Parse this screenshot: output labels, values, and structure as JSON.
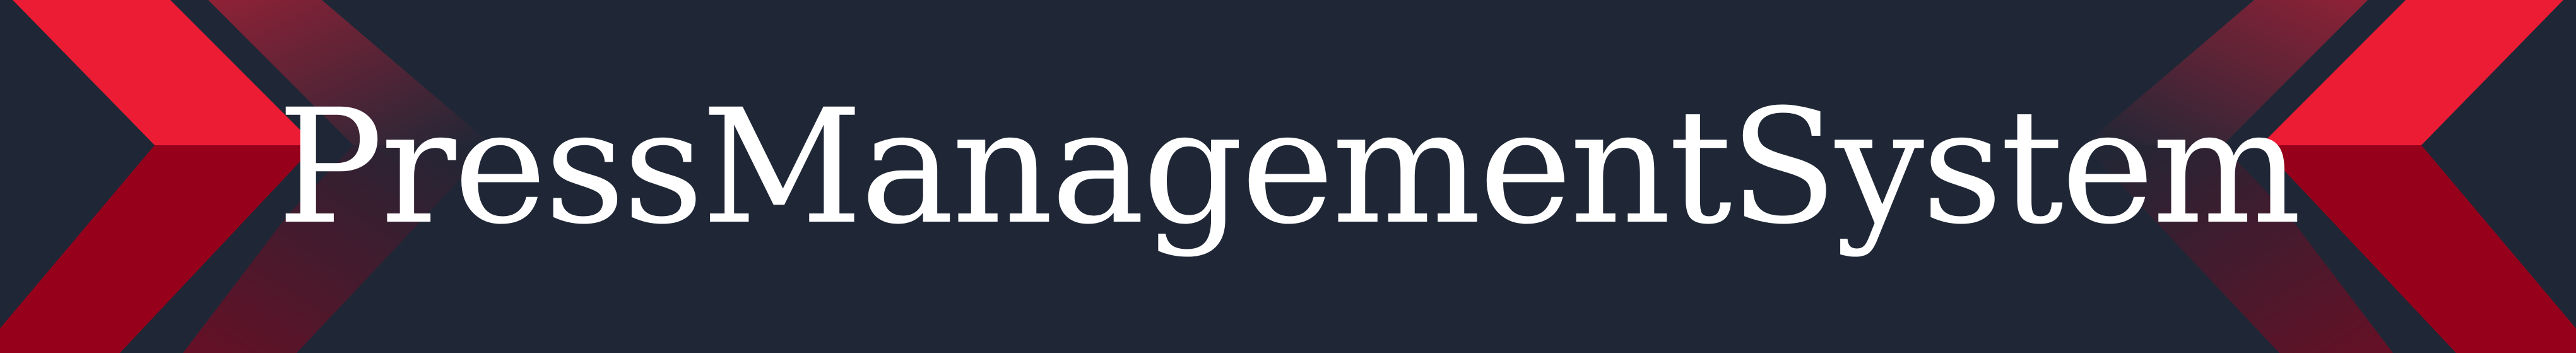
{
  "banner": {
    "title": "PressManagementSystem"
  },
  "colors": {
    "background": "#1f2736",
    "accent_bright": "#ec1c35",
    "accent_dark": "#96001b",
    "title_text": "#ffffff"
  },
  "icons": {
    "left": "chevron-right-icon",
    "right": "chevron-left-icon"
  }
}
